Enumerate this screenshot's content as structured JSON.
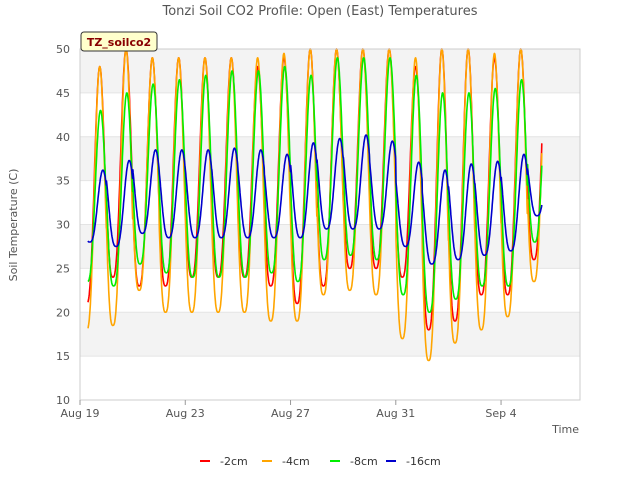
{
  "chart_data": {
    "type": "line",
    "title": "Tonzi Soil CO2 Profile: Open (East) Temperatures",
    "xlabel": "Time",
    "ylabel": "Soil Temperature (C)",
    "station_label": "TZ_soilco2",
    "xlim": [
      "2010-08-19",
      "2010-09-07"
    ],
    "ylim": [
      10,
      50
    ],
    "x_ticks": [
      {
        "label": "Aug 19",
        "date": "2010-08-19"
      },
      {
        "label": "Aug 23",
        "date": "2010-08-23"
      },
      {
        "label": "Aug 27",
        "date": "2010-08-27"
      },
      {
        "label": "Aug 31",
        "date": "2010-08-31"
      },
      {
        "label": "Sep 4",
        "date": "2010-09-04"
      }
    ],
    "y_ticks": [
      10,
      15,
      20,
      25,
      30,
      35,
      40,
      45,
      50
    ],
    "grid": "horizontal bands",
    "legend_position": "bottom",
    "daily_dates": [
      "2010-08-19",
      "2010-08-20",
      "2010-08-21",
      "2010-08-22",
      "2010-08-23",
      "2010-08-24",
      "2010-08-25",
      "2010-08-26",
      "2010-08-27",
      "2010-08-28",
      "2010-08-29",
      "2010-08-30",
      "2010-08-31",
      "2010-09-01",
      "2010-09-02",
      "2010-09-03",
      "2010-09-04",
      "2010-09-05"
    ],
    "series": [
      {
        "name": "-2cm",
        "color": "#ff0000",
        "daily_min": [
          21,
          24,
          23,
          23,
          24,
          24,
          24,
          23,
          21,
          23,
          25,
          25,
          24,
          18,
          19,
          22,
          22,
          26
        ],
        "daily_max": [
          48,
          50,
          49,
          49,
          49,
          49,
          48,
          49,
          50,
          50,
          50,
          50,
          48,
          50,
          50,
          49,
          50,
          50
        ]
      },
      {
        "name": "-4cm",
        "color": "#ffa500",
        "daily_min": [
          18,
          18.5,
          22.5,
          20,
          20,
          20,
          20,
          19,
          19,
          22,
          22.5,
          22,
          17,
          14.5,
          16.5,
          18,
          19.5,
          23.5
        ],
        "daily_max": [
          48,
          50,
          49,
          49,
          49,
          49,
          49,
          49.5,
          50,
          50,
          50,
          50,
          49,
          50,
          50,
          49.5,
          50,
          50
        ]
      },
      {
        "name": "-8cm",
        "color": "#00ee00",
        "daily_min": [
          23.5,
          23,
          25.5,
          24.5,
          24,
          24,
          24,
          24.5,
          23.5,
          26,
          26.5,
          26,
          22,
          20,
          21.5,
          23,
          23,
          28
        ],
        "daily_max": [
          43,
          45,
          46,
          46.5,
          47,
          47.5,
          47.5,
          48,
          47,
          49,
          49,
          49,
          47,
          45,
          45,
          45.5,
          46.5,
          47.5
        ]
      },
      {
        "name": "-16cm",
        "color": "#0000cc",
        "daily_min": [
          28,
          27.5,
          29,
          28.5,
          28.5,
          28.5,
          28.5,
          28.5,
          28.5,
          29.5,
          29.5,
          29.5,
          27.5,
          25.5,
          26,
          26.5,
          27,
          31
        ],
        "daily_max": [
          36.2,
          37.3,
          38.5,
          38.5,
          38.5,
          38.7,
          38.5,
          38,
          39.3,
          39.8,
          40.2,
          39.5,
          37.1,
          36.2,
          36.9,
          37.2,
          38,
          38
        ]
      }
    ]
  }
}
